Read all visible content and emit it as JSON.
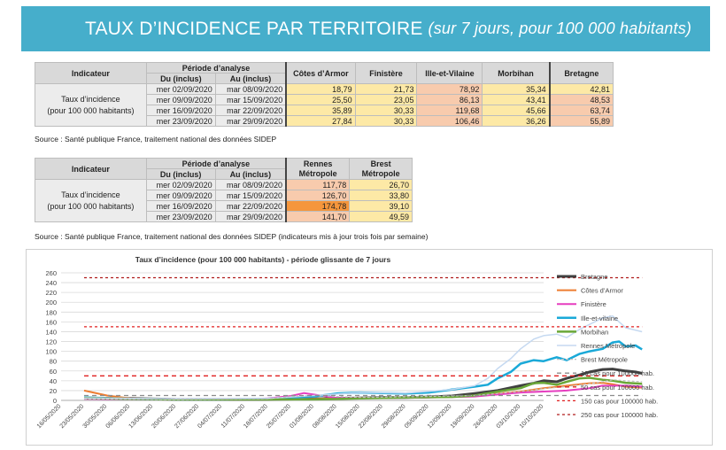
{
  "banner": {
    "title": "TAUX D’INCIDENCE PAR TERRITOIRE",
    "subtitle": "(sur 7 jours, pour 100 000 habitants)"
  },
  "table1": {
    "h_indicateur": "Indicateur",
    "h_periode": "Période d’analyse",
    "h_du": "Du (inclus)",
    "h_au": "Au (inclus)",
    "regions": [
      "Côtes d’Armor",
      "Finistère",
      "Ille-et-Vilaine",
      "Morbihan",
      "Bretagne"
    ],
    "label_line1": "Taux d’incidence",
    "label_line2": "(pour 100 000 habitants)",
    "rows": [
      {
        "du": "mer 02/09/2020",
        "au": "mar 08/09/2020",
        "v": [
          "18,79",
          "21,73",
          "78,92",
          "35,34",
          "42,81"
        ]
      },
      {
        "du": "mer 09/09/2020",
        "au": "mar 15/09/2020",
        "v": [
          "25,50",
          "23,05",
          "86,13",
          "43,41",
          "48,53"
        ]
      },
      {
        "du": "mer 16/09/2020",
        "au": "mar 22/09/2020",
        "v": [
          "35,89",
          "30,33",
          "119,68",
          "45,66",
          "63,74"
        ]
      },
      {
        "du": "mer 23/09/2020",
        "au": "mar 29/09/2020",
        "v": [
          "27,84",
          "30,33",
          "106,46",
          "36,26",
          "55,89"
        ]
      }
    ],
    "source": "Source : Santé publique France, traitement national des données SIDEP"
  },
  "table2": {
    "h_indicateur": "Indicateur",
    "h_periode": "Période d’analyse",
    "h_du": "Du (inclus)",
    "h_au": "Au (inclus)",
    "cities_l1": [
      "Rennes",
      "Brest"
    ],
    "cities_l2": [
      "Métropole",
      "Métropole"
    ],
    "label_line1": "Taux d’incidence",
    "label_line2": "(pour 100 000 habitants)",
    "rows": [
      {
        "du": "mer 02/09/2020",
        "au": "mar 08/09/2020",
        "v": [
          "117,78",
          "26,70"
        ]
      },
      {
        "du": "mer 09/09/2020",
        "au": "mar 15/09/2020",
        "v": [
          "126,70",
          "33,80"
        ]
      },
      {
        "du": "mer 16/09/2020",
        "au": "mar 22/09/2020",
        "v": [
          "174,78",
          "39,10"
        ]
      },
      {
        "du": "mer 23/09/2020",
        "au": "mar 29/09/2020",
        "v": [
          "141,70",
          "49,59"
        ]
      }
    ],
    "source": "Source : Santé publique France, traitement national des données SIDEP (indicateurs mis à jour trois fois par semaine)"
  },
  "chart_data": {
    "type": "line",
    "title": "Taux d’incidence (pour 100 000 habitants) - période glissante de 7 jours",
    "ylim": [
      0,
      260
    ],
    "yticks": [
      0,
      20,
      40,
      60,
      80,
      100,
      120,
      140,
      160,
      180,
      200,
      220,
      240,
      260
    ],
    "xticks": [
      "16/05/2020",
      "23/05/2020",
      "30/05/2020",
      "06/06/2020",
      "13/06/2020",
      "20/06/2020",
      "27/06/2020",
      "04/07/2020",
      "11/07/2020",
      "18/07/2020",
      "25/07/2020",
      "01/08/2020",
      "08/08/2020",
      "15/08/2020",
      "22/08/2020",
      "29/08/2020",
      "05/09/2020",
      "12/09/2020",
      "19/09/2020",
      "26/09/2020",
      "03/10/2020",
      "10/10/2020"
    ],
    "grid": true,
    "legend": "right",
    "x_start": "2020-05-16",
    "series": [
      {
        "name": "Bretagne",
        "color": "#404040",
        "width": 3,
        "dash": "",
        "points": [
          [
            7,
            5
          ],
          [
            21,
            4
          ],
          [
            35,
            2
          ],
          [
            49,
            2
          ],
          [
            63,
            2
          ],
          [
            77,
            3
          ],
          [
            84,
            4
          ],
          [
            91,
            5
          ],
          [
            98,
            6
          ],
          [
            105,
            6
          ],
          [
            112,
            7
          ],
          [
            119,
            9
          ],
          [
            126,
            14
          ],
          [
            133,
            20
          ],
          [
            140,
            30
          ],
          [
            144,
            35
          ],
          [
            147,
            40
          ],
          [
            151,
            38
          ],
          [
            154,
            45
          ],
          [
            158,
            52
          ],
          [
            161,
            58
          ],
          [
            165,
            63
          ],
          [
            168,
            64
          ],
          [
            172,
            60
          ],
          [
            175,
            58
          ],
          [
            177,
            55
          ]
        ]
      },
      {
        "name": "Côtes d’Armor",
        "color": "#ed7d31",
        "width": 2,
        "dash": "",
        "points": [
          [
            7,
            20
          ],
          [
            14,
            10
          ],
          [
            21,
            4
          ],
          [
            35,
            2
          ],
          [
            49,
            2
          ],
          [
            63,
            2
          ],
          [
            77,
            3
          ],
          [
            91,
            5
          ],
          [
            105,
            6
          ],
          [
            119,
            7
          ],
          [
            130,
            12
          ],
          [
            140,
            18
          ],
          [
            147,
            25
          ],
          [
            154,
            30
          ],
          [
            161,
            35
          ],
          [
            165,
            36
          ],
          [
            168,
            33
          ],
          [
            172,
            28
          ],
          [
            177,
            26
          ]
        ]
      },
      {
        "name": "Finistère",
        "color": "#e63dbf",
        "width": 2,
        "dash": "",
        "points": [
          [
            7,
            3
          ],
          [
            35,
            2
          ],
          [
            56,
            2
          ],
          [
            63,
            4
          ],
          [
            70,
            9
          ],
          [
            74,
            15
          ],
          [
            77,
            12
          ],
          [
            84,
            5
          ],
          [
            98,
            5
          ],
          [
            112,
            6
          ],
          [
            126,
            8
          ],
          [
            133,
            12
          ],
          [
            140,
            16
          ],
          [
            147,
            18
          ],
          [
            154,
            20
          ],
          [
            161,
            25
          ],
          [
            165,
            30
          ],
          [
            168,
            30
          ],
          [
            172,
            30
          ],
          [
            177,
            28
          ]
        ]
      },
      {
        "name": "Ille-et-vilaine",
        "color": "#1aa9d8",
        "width": 2.5,
        "dash": "",
        "points": [
          [
            7,
            6
          ],
          [
            21,
            3
          ],
          [
            35,
            2
          ],
          [
            49,
            2
          ],
          [
            63,
            3
          ],
          [
            77,
            8
          ],
          [
            84,
            14
          ],
          [
            91,
            16
          ],
          [
            98,
            15
          ],
          [
            105,
            14
          ],
          [
            112,
            16
          ],
          [
            119,
            22
          ],
          [
            126,
            28
          ],
          [
            130,
            32
          ],
          [
            133,
            45
          ],
          [
            137,
            58
          ],
          [
            140,
            75
          ],
          [
            144,
            82
          ],
          [
            147,
            80
          ],
          [
            151,
            88
          ],
          [
            154,
            82
          ],
          [
            158,
            95
          ],
          [
            161,
            100
          ],
          [
            165,
            105
          ],
          [
            168,
            118
          ],
          [
            170,
            120
          ],
          [
            172,
            110
          ],
          [
            175,
            112
          ],
          [
            177,
            104
          ]
        ]
      },
      {
        "name": "Morbihan",
        "color": "#6aa737",
        "width": 2.5,
        "dash": "",
        "points": [
          [
            7,
            5
          ],
          [
            21,
            3
          ],
          [
            35,
            2
          ],
          [
            49,
            2
          ],
          [
            63,
            2
          ],
          [
            77,
            2
          ],
          [
            91,
            4
          ],
          [
            105,
            6
          ],
          [
            119,
            7
          ],
          [
            126,
            10
          ],
          [
            133,
            18
          ],
          [
            140,
            25
          ],
          [
            144,
            35
          ],
          [
            147,
            36
          ],
          [
            151,
            32
          ],
          [
            154,
            38
          ],
          [
            158,
            45
          ],
          [
            161,
            46
          ],
          [
            165,
            42
          ],
          [
            168,
            40
          ],
          [
            172,
            36
          ],
          [
            177,
            34
          ]
        ]
      },
      {
        "name": "Rennes Métropole",
        "color": "#c5d9f1",
        "width": 1.5,
        "dash": "",
        "points": [
          [
            7,
            5
          ],
          [
            35,
            3
          ],
          [
            63,
            4
          ],
          [
            77,
            10
          ],
          [
            91,
            16
          ],
          [
            105,
            15
          ],
          [
            119,
            22
          ],
          [
            126,
            30
          ],
          [
            130,
            45
          ],
          [
            133,
            65
          ],
          [
            137,
            85
          ],
          [
            140,
            105
          ],
          [
            144,
            125
          ],
          [
            147,
            132
          ],
          [
            151,
            135
          ],
          [
            154,
            128
          ],
          [
            158,
            145
          ],
          [
            161,
            155
          ],
          [
            165,
            168
          ],
          [
            168,
            172
          ],
          [
            170,
            160
          ],
          [
            172,
            148
          ],
          [
            177,
            140
          ]
        ]
      },
      {
        "name": "Brest Métropole",
        "color": "#c0c0c0",
        "width": 1.2,
        "dash": "3,2",
        "points": [
          [
            7,
            3
          ],
          [
            35,
            2
          ],
          [
            63,
            3
          ],
          [
            70,
            8
          ],
          [
            77,
            10
          ],
          [
            91,
            6
          ],
          [
            112,
            8
          ],
          [
            126,
            10
          ],
          [
            140,
            18
          ],
          [
            147,
            24
          ],
          [
            154,
            28
          ],
          [
            161,
            34
          ],
          [
            165,
            38
          ],
          [
            168,
            42
          ],
          [
            172,
            40
          ],
          [
            177,
            38
          ]
        ]
      },
      {
        "name": "10 cas pour 100000 hab.",
        "color": "#8c8c8c",
        "width": 1.3,
        "dash": "5,4",
        "points": [
          [
            7,
            10
          ],
          [
            177,
            10
          ]
        ]
      },
      {
        "name": "50 cas pour 100000 hab.",
        "color": "#e02020",
        "width": 1.3,
        "dash": "5,4",
        "points": [
          [
            7,
            50
          ],
          [
            177,
            50
          ]
        ]
      },
      {
        "name": "150 cas pour 100000 hab.",
        "color": "#e02020",
        "width": 1.3,
        "dash": "3,3",
        "points": [
          [
            7,
            150
          ],
          [
            177,
            150
          ]
        ]
      },
      {
        "name": "250 cas pour 100000 hab.",
        "color": "#b01c1c",
        "width": 1.3,
        "dash": "3,3",
        "points": [
          [
            7,
            250
          ],
          [
            177,
            250
          ]
        ]
      }
    ]
  }
}
